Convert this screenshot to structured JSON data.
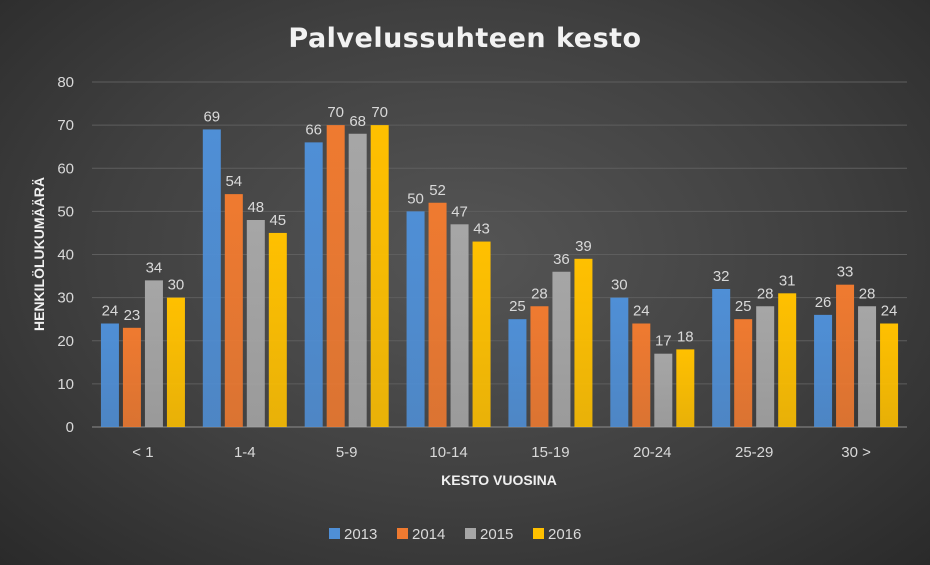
{
  "chart_data": {
    "type": "bar",
    "title": "Palvelussuhteen kesto",
    "xlabel": "KESTO VUOSINA",
    "ylabel": "HENKILÖLUKUMÄÄRÄ",
    "categories": [
      "< 1",
      "1-4",
      "5-9",
      "10-14",
      "15-19",
      "20-24",
      "25-29",
      "30 >"
    ],
    "series": [
      {
        "name": "2013",
        "color": "#4f8fd6",
        "values": [
          24,
          69,
          66,
          50,
          25,
          30,
          32,
          26
        ]
      },
      {
        "name": "2014",
        "color": "#ef7a30",
        "values": [
          23,
          54,
          70,
          52,
          28,
          24,
          25,
          33
        ]
      },
      {
        "name": "2015",
        "color": "#a6a6a6",
        "values": [
          34,
          48,
          68,
          47,
          36,
          17,
          28,
          28
        ]
      },
      {
        "name": "2016",
        "color": "#ffc000",
        "values": [
          30,
          45,
          70,
          43,
          39,
          18,
          31,
          24
        ]
      }
    ],
    "ylim": [
      0,
      80
    ],
    "yticks": [
      0,
      10,
      20,
      30,
      40,
      50,
      60,
      70,
      80
    ],
    "grid": true,
    "legend": "bottom",
    "data_labels": true
  }
}
